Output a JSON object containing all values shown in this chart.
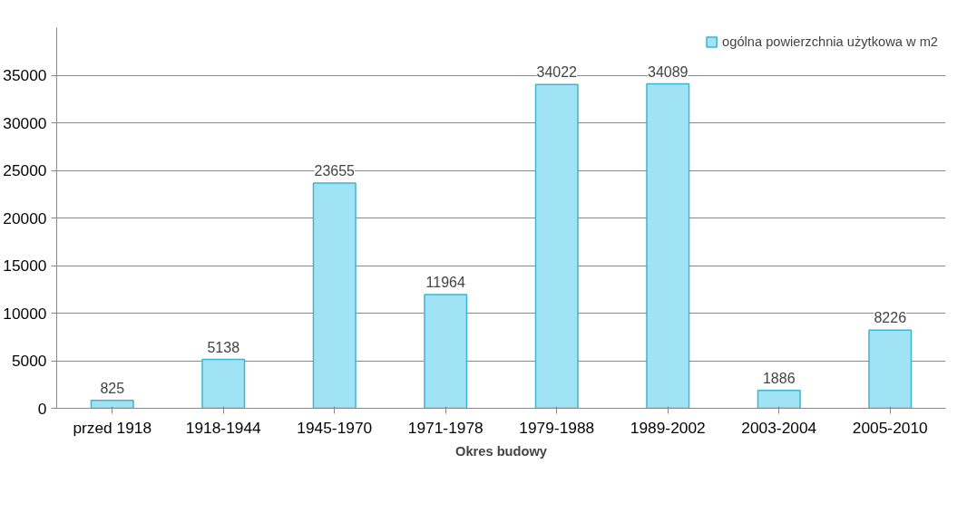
{
  "chart_data": {
    "type": "bar",
    "xlabel": "Okres budowy",
    "categories": [
      "przed 1918",
      "1918-1944",
      "1945-1970",
      "1971-1978",
      "1979-1988",
      "1989-2002",
      "2003-2004",
      "2005-2010"
    ],
    "series": [
      {
        "name": "ogólna powierzchnia użytkowa w m2",
        "color": "#9fe3f5",
        "values": [
          825,
          5138,
          23655,
          11964,
          34022,
          34089,
          1886,
          8226
        ]
      }
    ],
    "ylim": [
      0,
      40000
    ],
    "yticks": [
      0,
      5000,
      10000,
      15000,
      20000,
      25000,
      30000,
      35000
    ],
    "grid": "y",
    "legend": "top right",
    "data_labels": true
  }
}
